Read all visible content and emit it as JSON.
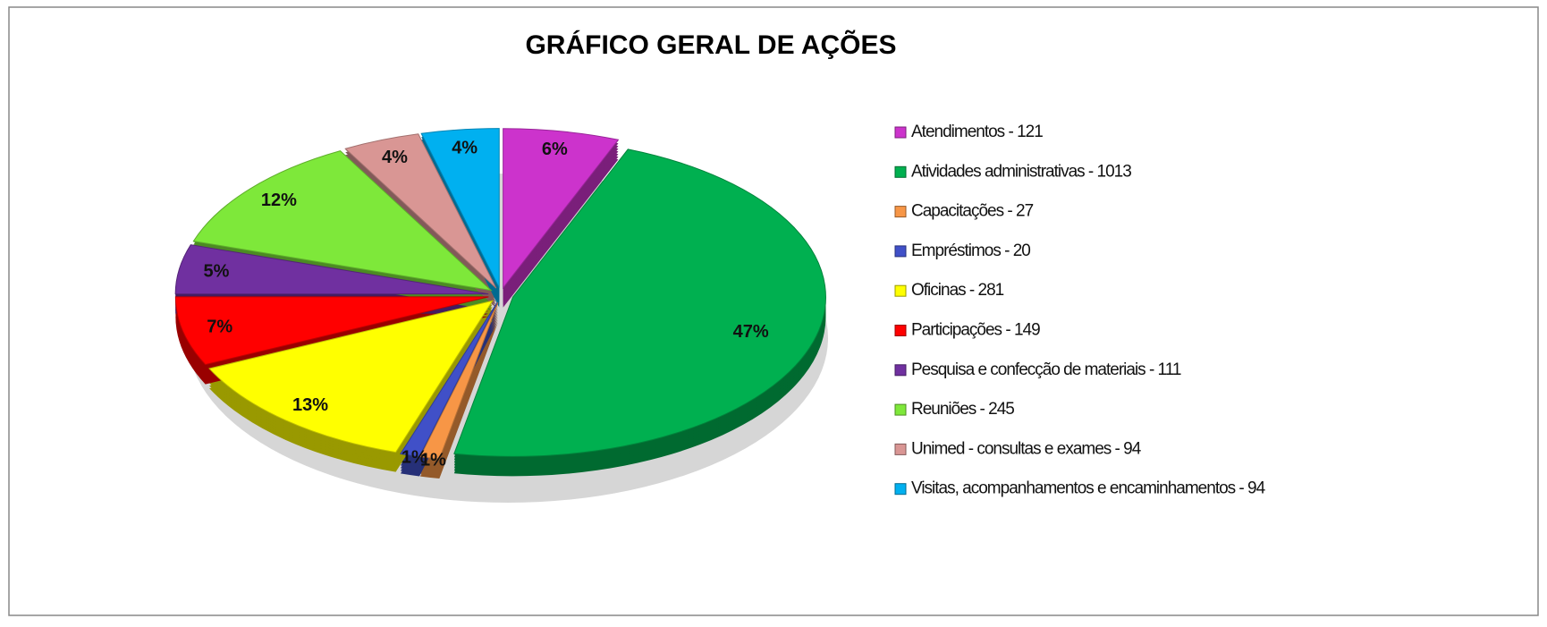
{
  "chart_data": {
    "type": "pie",
    "title": "GRÁFICO GERAL DE AÇÕES",
    "categories": [
      "Atendimentos - 121",
      "Atividades administrativas - 1013",
      "Capacitações - 27",
      "Empréstimos - 20",
      "Oficinas - 281",
      "Participações - 149",
      "Pesquisa e confecção de materiais - 111",
      "Reuniões - 245",
      "Unimed - consultas e exames - 94",
      "Visitas, acompanhamentos e encaminhamentos - 94"
    ],
    "values": [
      6,
      47,
      1,
      1,
      13,
      7,
      5,
      12,
      4,
      4
    ],
    "value_labels": [
      "6%",
      "47%",
      "1%",
      "1%",
      "13%",
      "7%",
      "5%",
      "12%",
      "4%",
      "4%"
    ],
    "colors": [
      "#cc33cc",
      "#00b050",
      "#f79646",
      "#4050c8",
      "#ffff00",
      "#ff0000",
      "#7030a0",
      "#7ee83a",
      "#d99694",
      "#00b0f0"
    ],
    "legend": "right"
  }
}
